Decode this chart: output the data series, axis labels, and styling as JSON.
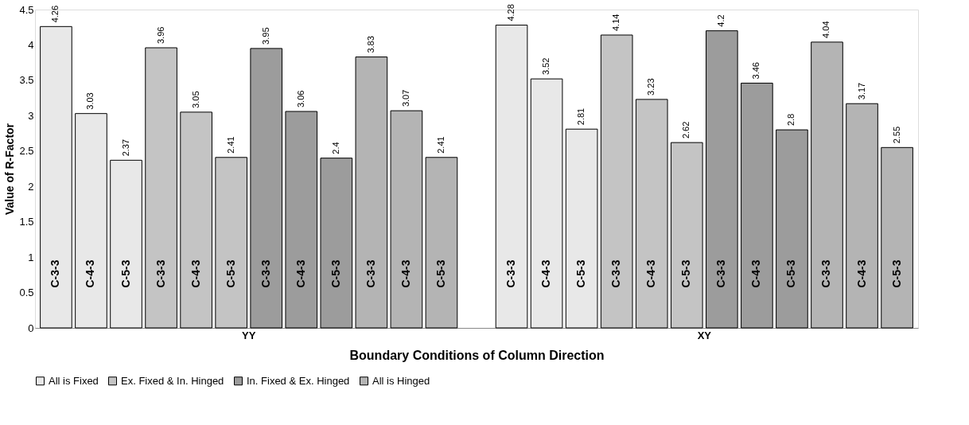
{
  "chart_data": {
    "type": "bar",
    "xlabel": "Boundary Conditions of Column Direction",
    "ylabel": "Value of R-Factor",
    "categories": [
      "C-3-3",
      "C-4-3",
      "C-5-3",
      "C-3-3",
      "C-4-3",
      "C-5-3",
      "C-3-3",
      "C-4-3",
      "C-5-3",
      "C-3-3",
      "C-4-3",
      "C-5-3",
      null,
      "C-3-3",
      "C-4-3",
      "C-5-3",
      "C-3-3",
      "C-4-3",
      "C-5-3",
      "C-3-3",
      "C-4-3",
      "C-5-3",
      "C-3-3",
      "C-4-3",
      "C-5-3"
    ],
    "series": [
      {
        "name": "All is Fixed",
        "color": "#e8e8e8",
        "values": [
          4.26,
          3.03,
          2.37,
          null,
          null,
          null,
          null,
          null,
          null,
          null,
          null,
          null,
          null,
          4.28,
          3.52,
          2.81,
          null,
          null,
          null,
          null,
          null,
          null,
          null,
          null,
          null
        ]
      },
      {
        "name": "Ex. Fixed & In. Hinged",
        "color": "#c4c4c4",
        "values": [
          null,
          null,
          null,
          3.96,
          3.05,
          2.41,
          null,
          null,
          null,
          null,
          null,
          null,
          null,
          null,
          null,
          null,
          4.14,
          3.23,
          2.62,
          null,
          null,
          null,
          null,
          null,
          null
        ]
      },
      {
        "name": "In. Fixed & Ex. Hinged",
        "color": "#9c9c9c",
        "values": [
          null,
          null,
          null,
          null,
          null,
          null,
          3.95,
          3.06,
          2.4,
          null,
          null,
          null,
          null,
          null,
          null,
          null,
          null,
          null,
          null,
          4.2,
          3.46,
          2.8,
          null,
          null,
          null
        ]
      },
      {
        "name": "All is Hinged",
        "color": "#b4b4b4",
        "values": [
          null,
          null,
          null,
          null,
          null,
          null,
          null,
          null,
          null,
          3.83,
          3.07,
          2.41,
          null,
          null,
          null,
          null,
          null,
          null,
          null,
          null,
          null,
          null,
          4.04,
          3.17,
          2.55
        ]
      }
    ],
    "annotations": [
      "YY",
      "XY"
    ],
    "ylim": [
      0,
      4.5
    ],
    "yticks": [
      0,
      0.5,
      1,
      1.5,
      2,
      2.5,
      3,
      3.5,
      4,
      4.5
    ],
    "data_labels": true,
    "grid": false,
    "legend": "bottom"
  }
}
